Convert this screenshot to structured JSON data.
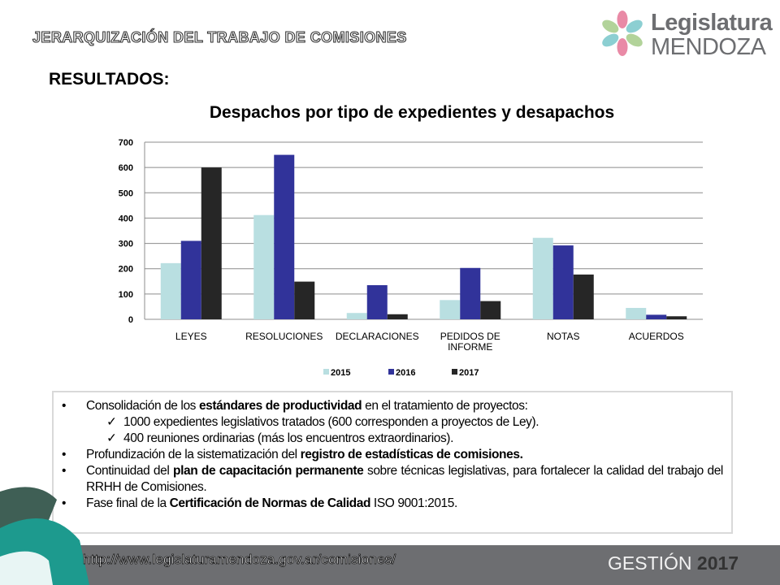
{
  "header": {
    "title": "JERARQUIZACIÓN  DEL  TRABAJO  DE  COMISIONES"
  },
  "logo": {
    "line1": "Legislatura",
    "line2": "MENDOZA"
  },
  "section": {
    "heading": "RESULTADOS:"
  },
  "chart_data": {
    "type": "bar",
    "title": "Despachos por tipo de expedientes y desapachos",
    "categories": [
      "LEYES",
      "RESOLUCIONES",
      "DECLARACIONES",
      "PEDIDOS DE INFORME",
      "NOTAS",
      "ACUERDOS"
    ],
    "category_lines": [
      [
        "LEYES"
      ],
      [
        "RESOLUCIONES"
      ],
      [
        "DECLARACIONES"
      ],
      [
        "PEDIDOS DE",
        "INFORME"
      ],
      [
        "NOTAS"
      ],
      [
        "ACUERDOS"
      ]
    ],
    "series": [
      {
        "name": "2015",
        "values": [
          222,
          412,
          25,
          76,
          322,
          45
        ],
        "color": "#b9dfe1"
      },
      {
        "name": "2016",
        "values": [
          310,
          650,
          135,
          203,
          292,
          18
        ],
        "color": "#31339a"
      },
      {
        "name": "2017",
        "values": [
          600,
          149,
          20,
          72,
          177,
          12
        ],
        "color": "#262626"
      }
    ],
    "ylim": [
      0,
      700
    ],
    "yticks": [
      0,
      100,
      200,
      300,
      400,
      500,
      600,
      700
    ],
    "grid": true,
    "legend": "bottom",
    "xlabel": "",
    "ylabel": ""
  },
  "bullets": {
    "b1_pre": "Consolidación de los ",
    "b1_bold": "estándares de productividad",
    "b1_post": " en el tratamiento de proyectos:",
    "check": "✓",
    "s1": "1000 expedientes legislativos tratados (600 corresponden a proyectos de Ley).",
    "s2": "400 reuniones ordinarias (más los encuentros extraordinarios).",
    "b2_pre": "Profundización de la sistematización del ",
    "b2_bold": "registro de estadísticas de comisiones.",
    "b3_pre": "Continuidad del ",
    "b3_bold": "plan de capacitación permanente",
    "b3_post": " sobre técnicas legislativas, para fortalecer la calidad del trabajo del RRHH de Comisiones.",
    "b4_pre": "Fase final de la ",
    "b4_bold": "Certificación de Normas de Calidad",
    "b4_post": " ISO 9001:2015."
  },
  "footer": {
    "url": "http://www.legislaturamendoza.gov.ar/comisiones/",
    "gestion_label": "GESTIÓN ",
    "gestion_year": "2017"
  },
  "colors": {
    "footer_bg": "#6d6e71",
    "corner_teal": "#1d9a8e",
    "corner_dark": "#3f5f55"
  }
}
